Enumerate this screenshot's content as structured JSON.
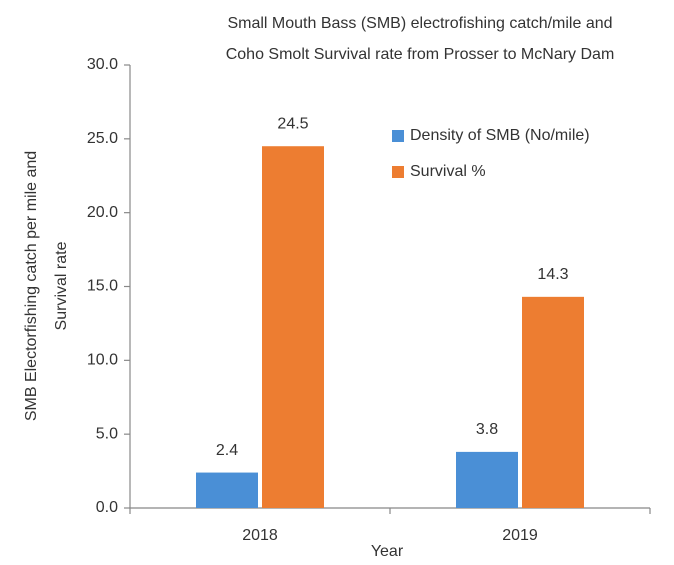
{
  "chart_data": {
    "type": "bar",
    "title": [
      "Small Mouth Bass (SMB) electrofishing catch/mile  and",
      "Coho Smolt Survival rate from Prosser to McNary Dam"
    ],
    "y_label": [
      "SMB Electorfishing catch per mile and",
      "Survival rate"
    ],
    "x_label": "Year",
    "categories": [
      "2018",
      "2019"
    ],
    "series": [
      {
        "name": "Density of SMB (No/mile)",
        "color": "#4a8fd6",
        "values": [
          2.4,
          3.8
        ]
      },
      {
        "name": "Survival %",
        "color": "#ed7d31",
        "values": [
          24.5,
          14.3
        ]
      }
    ],
    "ylim": [
      0,
      30
    ],
    "yticks": [
      {
        "value": 0,
        "label": "0.0"
      },
      {
        "value": 5,
        "label": "5.0"
      },
      {
        "value": 10,
        "label": "10.0"
      },
      {
        "value": 15,
        "label": "15.0"
      },
      {
        "value": 20,
        "label": "20.0"
      },
      {
        "value": 25,
        "label": "25.0"
      },
      {
        "value": 30,
        "label": "30.0"
      }
    ],
    "grid": false,
    "legend": "upper right",
    "data_labels": true
  }
}
